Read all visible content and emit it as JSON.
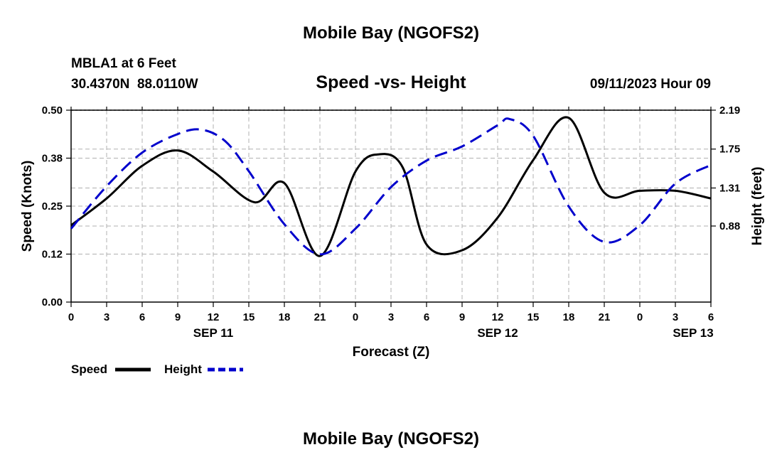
{
  "page_title": "Mobile Bay (NGOFS2)",
  "footer_title": "Mobile Bay (NGOFS2)",
  "station": {
    "name": "MBLA1 at 6 Feet",
    "coords": "30.4370N  88.0110W"
  },
  "colors": {
    "speed": "#000000",
    "height": "#0000cc",
    "grid": "#b0b0b0"
  },
  "chart_data": {
    "type": "line",
    "title": "Speed -vs- Height",
    "timestamp": "09/11/2023 Hour 09",
    "xlabel": "Forecast (Z)",
    "ylabel_left": "Speed (Knots)",
    "ylabel_right": "Height (feet)",
    "x_range_hours": [
      0,
      54
    ],
    "x_ticks": [
      {
        "h": 0,
        "label": "0"
      },
      {
        "h": 3,
        "label": "3"
      },
      {
        "h": 6,
        "label": "6"
      },
      {
        "h": 9,
        "label": "9"
      },
      {
        "h": 12,
        "label": "12"
      },
      {
        "h": 15,
        "label": "15"
      },
      {
        "h": 18,
        "label": "18"
      },
      {
        "h": 21,
        "label": "21"
      },
      {
        "h": 24,
        "label": "0"
      },
      {
        "h": 27,
        "label": "3"
      },
      {
        "h": 30,
        "label": "6"
      },
      {
        "h": 33,
        "label": "9"
      },
      {
        "h": 36,
        "label": "12"
      },
      {
        "h": 39,
        "label": "15"
      },
      {
        "h": 42,
        "label": "18"
      },
      {
        "h": 45,
        "label": "21"
      },
      {
        "h": 48,
        "label": "0"
      },
      {
        "h": 51,
        "label": "3"
      },
      {
        "h": 54,
        "label": "6"
      }
    ],
    "date_labels": [
      {
        "h": 12,
        "label": "SEP 11"
      },
      {
        "h": 36,
        "label": "SEP 12"
      },
      {
        "h": 52.5,
        "label": "SEP 13"
      }
    ],
    "y_left": {
      "min": 0,
      "max": 0.5,
      "ticks": [
        {
          "v": 0,
          "label": "0.00"
        },
        {
          "v": 0.125,
          "label": "0.12"
        },
        {
          "v": 0.25,
          "label": "0.25"
        },
        {
          "v": 0.375,
          "label": "0.38"
        },
        {
          "v": 0.5,
          "label": "0.50"
        }
      ]
    },
    "y_right": {
      "min": 0.02,
      "max": 2.19,
      "ticks": [
        {
          "v": 0.88,
          "label": "0.88"
        },
        {
          "v": 1.31,
          "label": "1.31"
        },
        {
          "v": 1.75,
          "label": "1.75"
        },
        {
          "v": 2.19,
          "label": "2.19"
        }
      ]
    },
    "legend": {
      "position": "bottom-left"
    },
    "series": [
      {
        "name": "Speed",
        "axis": "left",
        "style": "solid",
        "x": [
          0,
          3,
          6,
          9,
          12,
          15.5,
          18,
          21,
          24,
          26,
          28,
          30,
          33,
          36,
          39,
          42,
          45,
          48,
          51,
          54
        ],
        "y": [
          0.2,
          0.27,
          0.355,
          0.395,
          0.34,
          0.26,
          0.31,
          0.12,
          0.34,
          0.385,
          0.35,
          0.15,
          0.135,
          0.22,
          0.37,
          0.48,
          0.285,
          0.29,
          0.29,
          0.27
        ]
      },
      {
        "name": "Height",
        "axis": "right",
        "style": "dashed",
        "x": [
          0,
          3,
          6,
          9,
          11,
          13,
          15,
          18,
          21,
          24,
          27,
          30,
          33,
          36,
          37,
          39,
          42,
          45,
          48,
          51,
          54
        ],
        "y": [
          0.85,
          1.33,
          1.71,
          1.92,
          1.97,
          1.84,
          1.5,
          0.9,
          0.56,
          0.85,
          1.32,
          1.62,
          1.78,
          2.02,
          2.09,
          1.9,
          1.1,
          0.7,
          0.89,
          1.36,
          1.57
        ]
      }
    ]
  }
}
